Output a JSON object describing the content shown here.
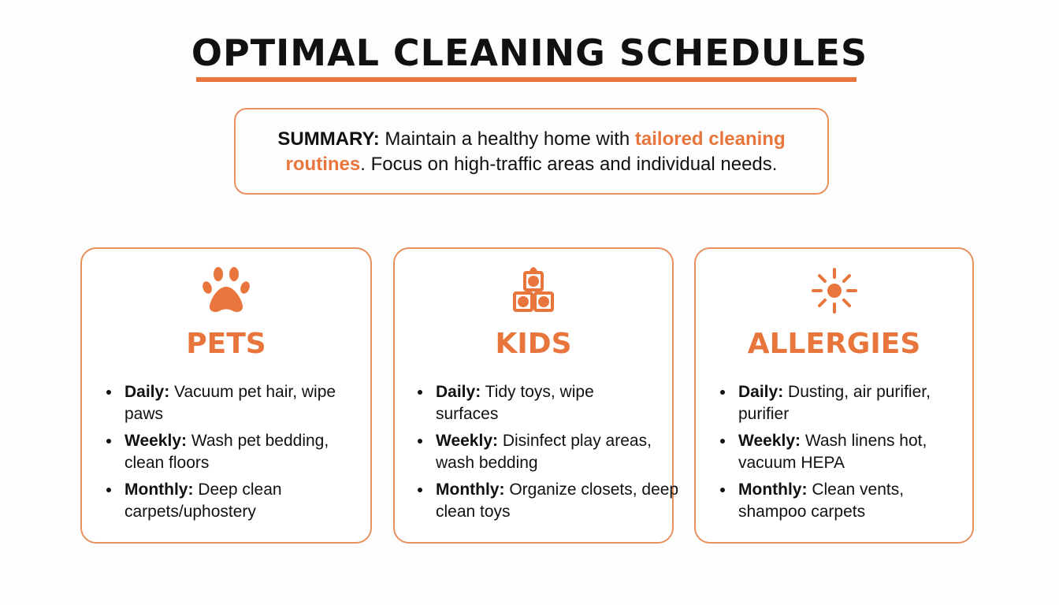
{
  "title": "OPTIMAL CLEANING SCHEDULES",
  "summary": {
    "label": "SUMMARY:",
    "text1": " Maintain a healthy home with ",
    "highlight": "tailored cleaning routines",
    "text2": ". Focus on high-traffic areas and individual needs."
  },
  "accent": "#e8763c",
  "cards": [
    {
      "icon": "paw-icon",
      "title": "PETS",
      "items": [
        {
          "label": "Daily:",
          "text": " Vacuum pet hair, wipe paws"
        },
        {
          "label": "Weekly:",
          "text": " Wash pet bedding, clean floors"
        },
        {
          "label": "Monthly:",
          "text": " Deep clean carpets/uphostery"
        }
      ]
    },
    {
      "icon": "toy-blocks-icon",
      "title": "KIDS",
      "items": [
        {
          "label": "Daily:",
          "text": " Tidy toys, wipe surfaces"
        },
        {
          "label": "Weekly:",
          "text": " Disinfect play areas, wash bedding"
        },
        {
          "label": "Monthly:",
          "text": " Organize closets, deep clean toys"
        }
      ]
    },
    {
      "icon": "sun-pollen-icon",
      "title": "ALLERGIES",
      "items": [
        {
          "label": "Daily:",
          "text": " Dusting, air purifier, purifier"
        },
        {
          "label": "Weekly:",
          "text": " Wash linens hot, vacuum HEPA"
        },
        {
          "label": "Monthly:",
          "text": " Clean vents, shampoo carpets"
        }
      ]
    }
  ]
}
